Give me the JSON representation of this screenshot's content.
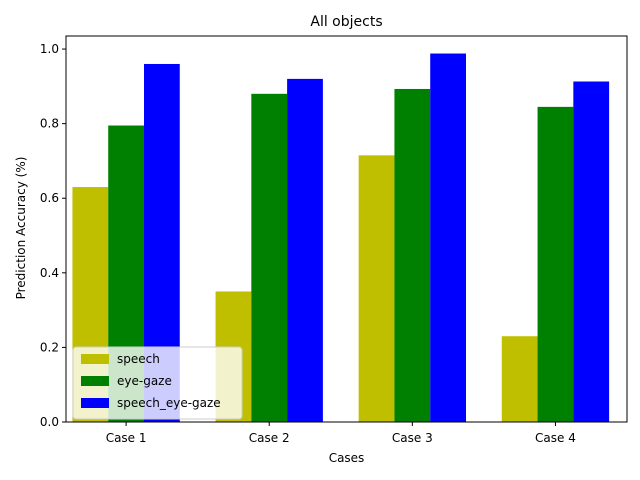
{
  "chart_data": {
    "type": "bar",
    "title": "All objects",
    "xlabel": "Cases",
    "ylabel": "Prediction Accuracy (%)",
    "categories": [
      "Case 1",
      "Case 2",
      "Case 3",
      "Case 4"
    ],
    "series": [
      {
        "name": "speech",
        "color": "#bfbf00",
        "values": [
          0.63,
          0.35,
          0.715,
          0.23
        ]
      },
      {
        "name": "eye-gaze",
        "color": "#008000",
        "values": [
          0.795,
          0.88,
          0.893,
          0.845
        ]
      },
      {
        "name": "speech_eye-gaze",
        "color": "#0000ff",
        "values": [
          0.96,
          0.92,
          0.988,
          0.913
        ]
      }
    ],
    "ylim": [
      0,
      1.035
    ],
    "yticks": [
      "0.0",
      "0.2",
      "0.4",
      "0.6",
      "0.8",
      "1.0"
    ],
    "grid": false,
    "legend_position": "lower-left"
  }
}
